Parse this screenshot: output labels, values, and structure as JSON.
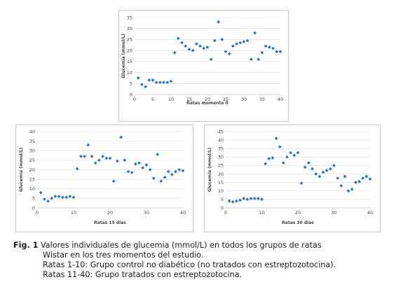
{
  "chart_data": [
    {
      "type": "scatter",
      "title": "",
      "xlabel": "Ratas momento 0",
      "ylabel": "Glucemia (mmol/L)",
      "xlim": [
        0,
        40
      ],
      "ylim": [
        0,
        35
      ],
      "xticks": [
        0,
        5,
        10,
        15,
        20,
        25,
        30,
        35,
        40
      ],
      "yticks": [
        0,
        5,
        10,
        15,
        20,
        25,
        30,
        35
      ],
      "grid": true,
      "color": "#2e75b6",
      "x": [
        1,
        2,
        3,
        4,
        5,
        6,
        7,
        8,
        9,
        10,
        11,
        12,
        13,
        14,
        15,
        16,
        17,
        18,
        19,
        20,
        21,
        22,
        23,
        24,
        25,
        26,
        27,
        28,
        29,
        30,
        31,
        32,
        33,
        34,
        35,
        36,
        37,
        38,
        39,
        40
      ],
      "y": [
        7.5,
        4.5,
        3.5,
        6.5,
        6.5,
        5.5,
        5.5,
        5.5,
        5.5,
        6,
        19,
        25.5,
        23.5,
        22,
        20.5,
        20,
        23,
        22,
        21,
        21.5,
        16,
        24.5,
        33,
        25,
        19.5,
        18.5,
        22,
        23,
        23.5,
        24,
        24.5,
        16,
        28,
        16,
        19,
        22,
        21.5,
        21,
        19.5,
        19.5
      ]
    },
    {
      "type": "scatter",
      "title": "",
      "xlabel": "Ratas 15 días",
      "ylabel": "Glucemia (mmol/L)",
      "xlim": [
        0,
        40
      ],
      "ylim": [
        0,
        40
      ],
      "xticks": [
        0,
        10,
        20,
        30,
        40
      ],
      "yticks": [
        0,
        5,
        10,
        15,
        20,
        25,
        30,
        35,
        40
      ],
      "grid": true,
      "color": "#2e75b6",
      "x": [
        1,
        2,
        3,
        4,
        5,
        6,
        7,
        8,
        9,
        10,
        11,
        12,
        13,
        14,
        15,
        16,
        17,
        18,
        19,
        20,
        21,
        22,
        23,
        24,
        25,
        26,
        27,
        28,
        29,
        30,
        31,
        32,
        33,
        34,
        35,
        36,
        37,
        38,
        39,
        40
      ],
      "y": [
        8,
        4.5,
        3.5,
        5,
        6,
        6,
        5.5,
        5.5,
        6,
        5.5,
        20.5,
        27,
        27,
        33,
        27,
        23.5,
        25,
        27,
        26,
        26,
        14,
        24.5,
        37,
        25,
        19,
        18.5,
        23,
        23.5,
        21,
        22.5,
        20,
        15.5,
        28,
        14,
        16,
        19,
        17.5,
        19,
        20,
        19.5
      ]
    },
    {
      "type": "scatter",
      "title": "",
      "xlabel": "Ratas 30 días",
      "ylabel": "Glucemia (mmol/L)",
      "xlim": [
        0,
        40
      ],
      "ylim": [
        0,
        45
      ],
      "xticks": [
        0,
        10,
        20,
        30,
        40
      ],
      "yticks": [
        0,
        5,
        10,
        15,
        20,
        25,
        30,
        35,
        40,
        45
      ],
      "grid": true,
      "color": "#2e75b6",
      "x": [
        1,
        2,
        3,
        4,
        5,
        6,
        7,
        8,
        9,
        10,
        11,
        12,
        13,
        14,
        15,
        16,
        17,
        18,
        19,
        20,
        21,
        22,
        23,
        24,
        25,
        26,
        27,
        28,
        29,
        30,
        31,
        32,
        33,
        34,
        35,
        36,
        37,
        38,
        39,
        40
      ],
      "y": [
        4,
        3.5,
        4,
        4.5,
        5.5,
        5,
        5.5,
        5.5,
        5.5,
        5,
        26,
        29,
        29.5,
        41,
        36,
        26.5,
        30,
        32.5,
        31,
        32.5,
        14.5,
        24,
        26.5,
        23,
        20,
        18.5,
        21,
        22,
        23,
        25,
        17.5,
        13,
        18.5,
        10,
        11,
        15,
        15.5,
        17.5,
        18.5,
        17
      ]
    }
  ],
  "caption": {
    "label": "Fig. 1",
    "line1": " Valores individuales de glucemia (mmol/L) en todos los grupos de ratas",
    "line2": "Wistar en los tres momentos del estudio.",
    "line3": "Ratas   1-10: Grupo control no diabético (no tratados con estreptozotocina).",
    "line4": "Ratas 11-40: Grupo tratados con estreptozotocina."
  }
}
